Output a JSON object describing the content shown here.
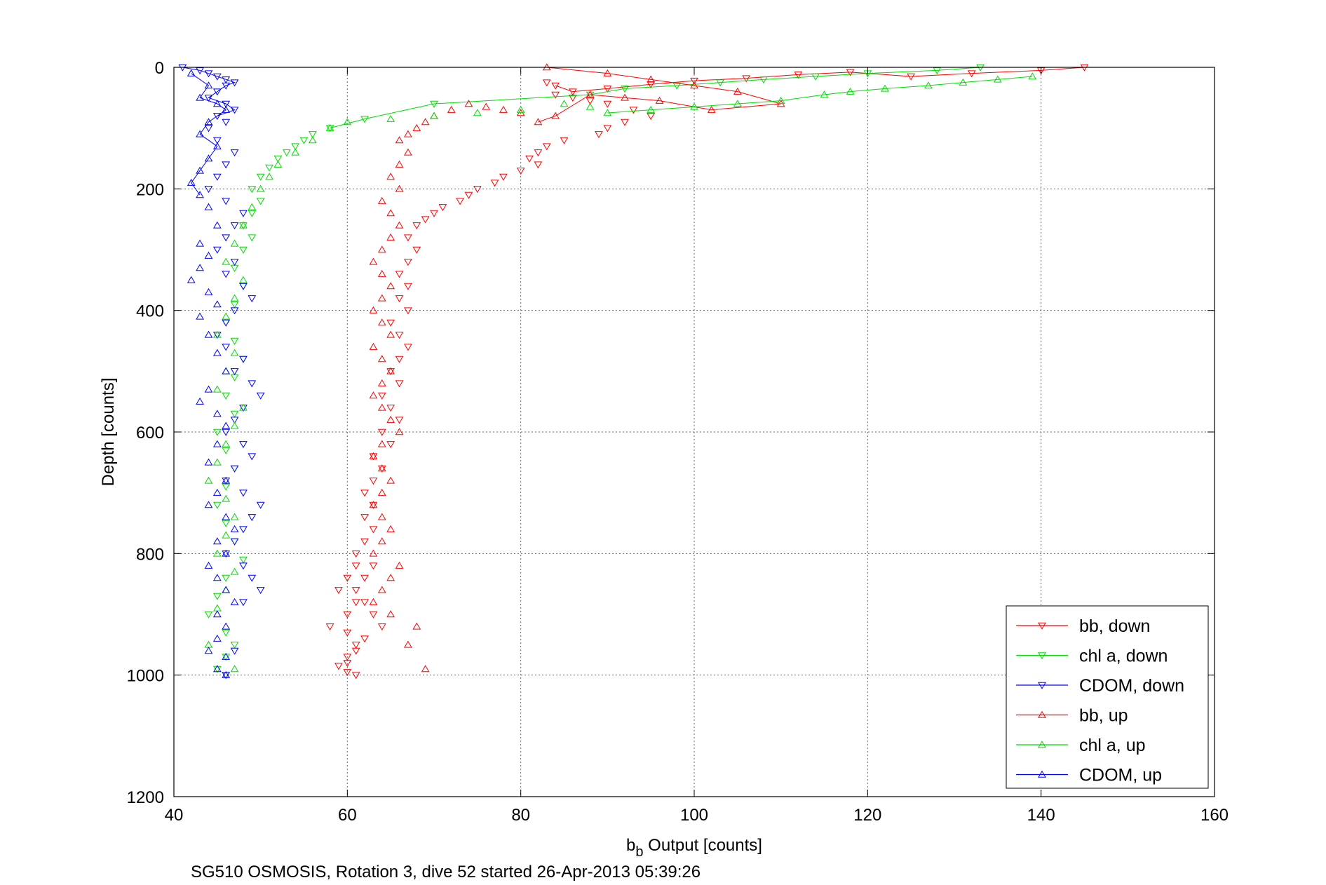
{
  "chart_data": {
    "type": "scatter",
    "xlabel_main": "b",
    "xlabel_sub": "b",
    "xlabel_rest": " Output [counts]",
    "ylabel": "Depth [counts]",
    "caption": "SG510 OSMOSIS, Rotation 3, dive 52 started 26-Apr-2013 05:39:26",
    "xlim": [
      40,
      160
    ],
    "ylim": [
      0,
      1200
    ],
    "y_reversed": true,
    "xticks": [
      "40",
      "60",
      "80",
      "100",
      "120",
      "140",
      "160"
    ],
    "yticks": [
      "0",
      "200",
      "400",
      "600",
      "800",
      "1000",
      "1200"
    ],
    "grid": true,
    "legend_position": "bottom-right",
    "series": [
      {
        "name": "bb, down",
        "color": "#ff0000",
        "marker": "triangle-down",
        "x": [
          145,
          140,
          132,
          125,
          118,
          112,
          106,
          100,
          95,
          90,
          86,
          84,
          83,
          84,
          86,
          88,
          90,
          93,
          95,
          92,
          90,
          89,
          85,
          83,
          82,
          81,
          82,
          80,
          78,
          77,
          75,
          74,
          73,
          71,
          70,
          69,
          68,
          67,
          68,
          67,
          66,
          67,
          66,
          67,
          65,
          66,
          67,
          66,
          65,
          66,
          64,
          65,
          66,
          64,
          65,
          63,
          64,
          63,
          62,
          63,
          62,
          63,
          62,
          61,
          63,
          62,
          61,
          62,
          63,
          64,
          62,
          61,
          60,
          61,
          60,
          59,
          60,
          61,
          60,
          58,
          60,
          61,
          59,
          60,
          61
        ],
        "y": [
          0,
          5,
          10,
          15,
          8,
          12,
          18,
          22,
          28,
          35,
          40,
          30,
          25,
          45,
          50,
          55,
          60,
          70,
          80,
          90,
          100,
          110,
          120,
          130,
          140,
          150,
          160,
          170,
          180,
          190,
          200,
          210,
          220,
          230,
          240,
          250,
          260,
          280,
          300,
          320,
          340,
          360,
          380,
          400,
          420,
          440,
          460,
          480,
          500,
          520,
          540,
          560,
          580,
          600,
          620,
          640,
          660,
          680,
          700,
          720,
          740,
          760,
          780,
          800,
          820,
          840,
          860,
          880,
          900,
          920,
          940,
          960,
          980,
          1000,
          995,
          985,
          970,
          950,
          930,
          920,
          900,
          880,
          860,
          840,
          820
        ]
      },
      {
        "name": "chl a, down",
        "color": "#00dd00",
        "marker": "triangle-down",
        "x": [
          133,
          128,
          120,
          114,
          108,
          103,
          98,
          92,
          88,
          70,
          62,
          58,
          56,
          55,
          54,
          53,
          52,
          51,
          50,
          49,
          50,
          49,
          48,
          49,
          48,
          47,
          48,
          47,
          46,
          47,
          48,
          47,
          46,
          47,
          45,
          46,
          47,
          46,
          45,
          46,
          47,
          48,
          46,
          45,
          44,
          46,
          47,
          46,
          45,
          46
        ],
        "y": [
          0,
          5,
          10,
          15,
          20,
          25,
          30,
          35,
          45,
          60,
          85,
          100,
          110,
          120,
          130,
          140,
          150,
          165,
          180,
          200,
          220,
          240,
          260,
          280,
          300,
          330,
          360,
          390,
          420,
          450,
          480,
          510,
          540,
          570,
          600,
          630,
          660,
          690,
          720,
          750,
          780,
          810,
          840,
          870,
          900,
          930,
          950,
          970,
          990,
          1000
        ]
      },
      {
        "name": "CDOM, down",
        "color": "#0000ff",
        "marker": "triangle-down",
        "x": [
          41,
          43,
          44,
          45,
          46,
          47,
          46,
          45,
          44,
          46,
          47,
          45,
          46,
          44,
          45,
          47,
          46,
          45,
          44,
          46,
          48,
          47,
          46,
          45,
          47,
          46,
          48,
          49,
          47,
          46,
          45,
          46,
          48,
          47,
          49,
          50,
          48,
          47,
          46,
          48,
          49,
          47,
          46,
          48,
          50,
          49,
          48,
          47,
          46,
          48,
          49,
          50,
          48,
          47,
          46
        ],
        "y": [
          0,
          5,
          10,
          15,
          20,
          25,
          30,
          40,
          50,
          60,
          70,
          80,
          90,
          100,
          120,
          140,
          160,
          180,
          200,
          220,
          240,
          260,
          280,
          300,
          320,
          340,
          360,
          380,
          400,
          420,
          440,
          460,
          480,
          500,
          520,
          540,
          560,
          580,
          600,
          620,
          640,
          660,
          680,
          700,
          720,
          740,
          760,
          780,
          800,
          820,
          840,
          860,
          880,
          960,
          1000
        ]
      },
      {
        "name": "bb, up",
        "color": "#ff0000",
        "marker": "triangle-up",
        "x": [
          83,
          90,
          95,
          100,
          105,
          110,
          102,
          96,
          92,
          88,
          84,
          82,
          80,
          78,
          76,
          74,
          72,
          70,
          69,
          68,
          67,
          66,
          67,
          66,
          65,
          66,
          64,
          65,
          66,
          65,
          64,
          63,
          64,
          65,
          64,
          63,
          64,
          65,
          63,
          64,
          65,
          64,
          63,
          64,
          65,
          66,
          64,
          63,
          64,
          65,
          64,
          63,
          64,
          65,
          64,
          63,
          66,
          65,
          64,
          63,
          65,
          68,
          67,
          69
        ],
        "y": [
          0,
          10,
          20,
          30,
          40,
          60,
          70,
          55,
          50,
          45,
          80,
          90,
          75,
          70,
          65,
          60,
          70,
          80,
          90,
          100,
          110,
          120,
          140,
          160,
          180,
          200,
          220,
          240,
          260,
          280,
          300,
          320,
          340,
          360,
          380,
          400,
          420,
          440,
          460,
          480,
          500,
          520,
          540,
          560,
          580,
          600,
          620,
          640,
          660,
          680,
          700,
          720,
          740,
          760,
          780,
          800,
          820,
          840,
          860,
          880,
          900,
          920,
          950,
          990
        ]
      },
      {
        "name": "chl a, up",
        "color": "#00dd00",
        "marker": "triangle-up",
        "x": [
          139,
          135,
          131,
          127,
          122,
          118,
          115,
          110,
          105,
          100,
          95,
          90,
          88,
          85,
          80,
          75,
          70,
          65,
          60,
          58,
          56,
          54,
          52,
          51,
          50,
          49,
          48,
          47,
          46,
          48,
          47,
          46,
          45,
          47,
          46,
          45,
          48,
          47,
          46,
          45,
          44,
          46,
          47,
          46,
          45,
          47,
          46,
          45,
          44,
          47
        ],
        "y": [
          15,
          20,
          25,
          30,
          35,
          40,
          45,
          55,
          60,
          65,
          70,
          75,
          65,
          60,
          70,
          75,
          80,
          85,
          90,
          100,
          120,
          140,
          160,
          180,
          200,
          230,
          260,
          290,
          320,
          350,
          380,
          410,
          440,
          470,
          500,
          530,
          560,
          590,
          620,
          650,
          680,
          710,
          740,
          770,
          800,
          830,
          860,
          890,
          950,
          990
        ]
      },
      {
        "name": "CDOM, up",
        "color": "#0000ff",
        "marker": "triangle-up",
        "x": [
          42,
          44,
          43,
          45,
          46,
          44,
          43,
          45,
          44,
          43,
          42,
          43,
          44,
          45,
          43,
          44,
          43,
          42,
          44,
          45,
          43,
          44,
          45,
          46,
          44,
          43,
          45,
          46,
          45,
          44,
          46,
          45,
          44,
          46,
          47,
          45,
          46,
          44,
          45,
          46,
          47,
          45,
          46,
          45,
          44,
          46,
          45,
          46
        ],
        "y": [
          10,
          30,
          50,
          60,
          70,
          90,
          110,
          130,
          150,
          170,
          190,
          210,
          230,
          260,
          290,
          310,
          330,
          350,
          370,
          390,
          410,
          440,
          470,
          500,
          530,
          550,
          570,
          590,
          620,
          650,
          680,
          700,
          720,
          740,
          760,
          780,
          800,
          820,
          840,
          860,
          880,
          900,
          920,
          940,
          960,
          970,
          990,
          1000
        ]
      }
    ]
  }
}
